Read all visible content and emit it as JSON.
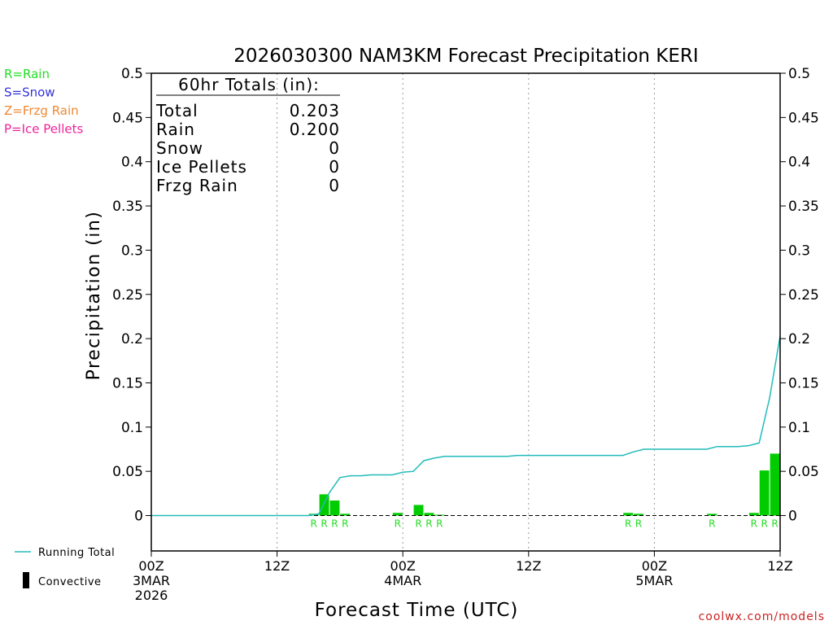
{
  "chart_data": {
    "type": "bar",
    "title": "2026030300 NAM3KM Forecast Precipitation KERI",
    "xlabel": "Forecast Time (UTC)",
    "ylabel": "Precipitation (in)",
    "ylim": [
      -0.04,
      0.5
    ],
    "xlim_hours": [
      0,
      60
    ],
    "yticks": [
      {
        "value": 0,
        "label": "0"
      },
      {
        "value": 0.05,
        "label": "0.05"
      },
      {
        "value": 0.1,
        "label": "0.1"
      },
      {
        "value": 0.15,
        "label": "0.15"
      },
      {
        "value": 0.2,
        "label": "0.2"
      },
      {
        "value": 0.25,
        "label": "0.25"
      },
      {
        "value": 0.3,
        "label": "0.3"
      },
      {
        "value": 0.35,
        "label": "0.35"
      },
      {
        "value": 0.4,
        "label": "0.4"
      },
      {
        "value": 0.45,
        "label": "0.45"
      },
      {
        "value": 0.5,
        "label": "0.5"
      }
    ],
    "xticks": [
      {
        "hour": 0,
        "lines": [
          "00Z",
          "3MAR",
          "2026"
        ]
      },
      {
        "hour": 12,
        "lines": [
          "12Z"
        ]
      },
      {
        "hour": 24,
        "lines": [
          "00Z",
          "4MAR"
        ]
      },
      {
        "hour": 36,
        "lines": [
          "12Z"
        ]
      },
      {
        "hour": 48,
        "lines": [
          "00Z",
          "5MAR"
        ]
      },
      {
        "hour": 60,
        "lines": [
          "12Z"
        ]
      }
    ],
    "grid_hours": [
      12,
      24,
      36,
      48
    ],
    "hourly_precip": [
      {
        "hour": 16,
        "value": 0.002,
        "type": "R"
      },
      {
        "hour": 17,
        "value": 0.024,
        "type": "R"
      },
      {
        "hour": 18,
        "value": 0.017,
        "type": "R"
      },
      {
        "hour": 19,
        "value": 0.002,
        "type": "R"
      },
      {
        "hour": 24,
        "value": 0.003,
        "type": "R"
      },
      {
        "hour": 26,
        "value": 0.012,
        "type": "R"
      },
      {
        "hour": 27,
        "value": 0.003,
        "type": "R"
      },
      {
        "hour": 28,
        "value": 0.001,
        "type": "R"
      },
      {
        "hour": 46,
        "value": 0.003,
        "type": "R"
      },
      {
        "hour": 47,
        "value": 0.002,
        "type": "R"
      },
      {
        "hour": 54,
        "value": 0.002,
        "type": "R"
      },
      {
        "hour": 58,
        "value": 0.003,
        "type": "R"
      },
      {
        "hour": 59,
        "value": 0.051,
        "type": "R"
      },
      {
        "hour": 60,
        "value": 0.07,
        "type": "R"
      }
    ],
    "running_total": {
      "name": "Running Total",
      "points": [
        [
          0,
          0
        ],
        [
          1,
          0
        ],
        [
          2,
          0
        ],
        [
          3,
          0
        ],
        [
          4,
          0
        ],
        [
          5,
          0
        ],
        [
          6,
          0
        ],
        [
          7,
          0
        ],
        [
          8,
          0
        ],
        [
          9,
          0
        ],
        [
          10,
          0
        ],
        [
          11,
          0
        ],
        [
          12,
          0
        ],
        [
          13,
          0
        ],
        [
          14,
          0
        ],
        [
          15,
          0
        ],
        [
          16,
          0.002
        ],
        [
          17,
          0.026
        ],
        [
          18,
          0.043
        ],
        [
          19,
          0.045
        ],
        [
          20,
          0.045
        ],
        [
          21,
          0.046
        ],
        [
          22,
          0.046
        ],
        [
          23,
          0.046
        ],
        [
          24,
          0.049
        ],
        [
          25,
          0.05
        ],
        [
          26,
          0.062
        ],
        [
          27,
          0.065
        ],
        [
          28,
          0.067
        ],
        [
          29,
          0.067
        ],
        [
          30,
          0.067
        ],
        [
          31,
          0.067
        ],
        [
          32,
          0.067
        ],
        [
          33,
          0.067
        ],
        [
          34,
          0.067
        ],
        [
          35,
          0.068
        ],
        [
          36,
          0.068
        ],
        [
          37,
          0.068
        ],
        [
          38,
          0.068
        ],
        [
          39,
          0.068
        ],
        [
          40,
          0.068
        ],
        [
          41,
          0.068
        ],
        [
          42,
          0.068
        ],
        [
          43,
          0.068
        ],
        [
          44,
          0.068
        ],
        [
          45,
          0.068
        ],
        [
          46,
          0.072
        ],
        [
          47,
          0.075
        ],
        [
          48,
          0.075
        ],
        [
          49,
          0.075
        ],
        [
          50,
          0.075
        ],
        [
          51,
          0.075
        ],
        [
          52,
          0.075
        ],
        [
          53,
          0.075
        ],
        [
          54,
          0.078
        ],
        [
          55,
          0.078
        ],
        [
          56,
          0.078
        ],
        [
          57,
          0.079
        ],
        [
          58,
          0.082
        ],
        [
          59,
          0.133
        ],
        [
          60,
          0.203
        ]
      ]
    },
    "totals_box": {
      "header": "60hr Totals (in):",
      "rows": [
        {
          "label": "Total",
          "value": "0.203"
        },
        {
          "label": "Rain",
          "value": "0.200"
        },
        {
          "label": "Snow",
          "value": "0"
        },
        {
          "label": "Ice Pellets",
          "value": "0"
        },
        {
          "label": "Frzg Rain",
          "value": "0"
        }
      ]
    },
    "precip_type_legend": [
      {
        "text": "R=Rain",
        "color": "#22dd22"
      },
      {
        "text": "S=Snow",
        "color": "#3333dd"
      },
      {
        "text": "Z=Frzg Rain",
        "color": "#ee8833"
      },
      {
        "text": "P=Ice Pellets",
        "color": "#ee2299"
      }
    ],
    "series_legend": [
      {
        "text": "Running Total",
        "kind": "line",
        "color": "#22bbbb"
      },
      {
        "text": "Convective",
        "kind": "bar",
        "color": "#000000"
      }
    ],
    "colors": {
      "bar": "#00cc00",
      "running_total": "#22bbbb",
      "type_letter": "#22dd22",
      "frame": "#000000",
      "grid": "#999999"
    },
    "grid": true
  },
  "footer": {
    "credit": "coolwx.com/models",
    "credit_color": "#cc2222"
  }
}
